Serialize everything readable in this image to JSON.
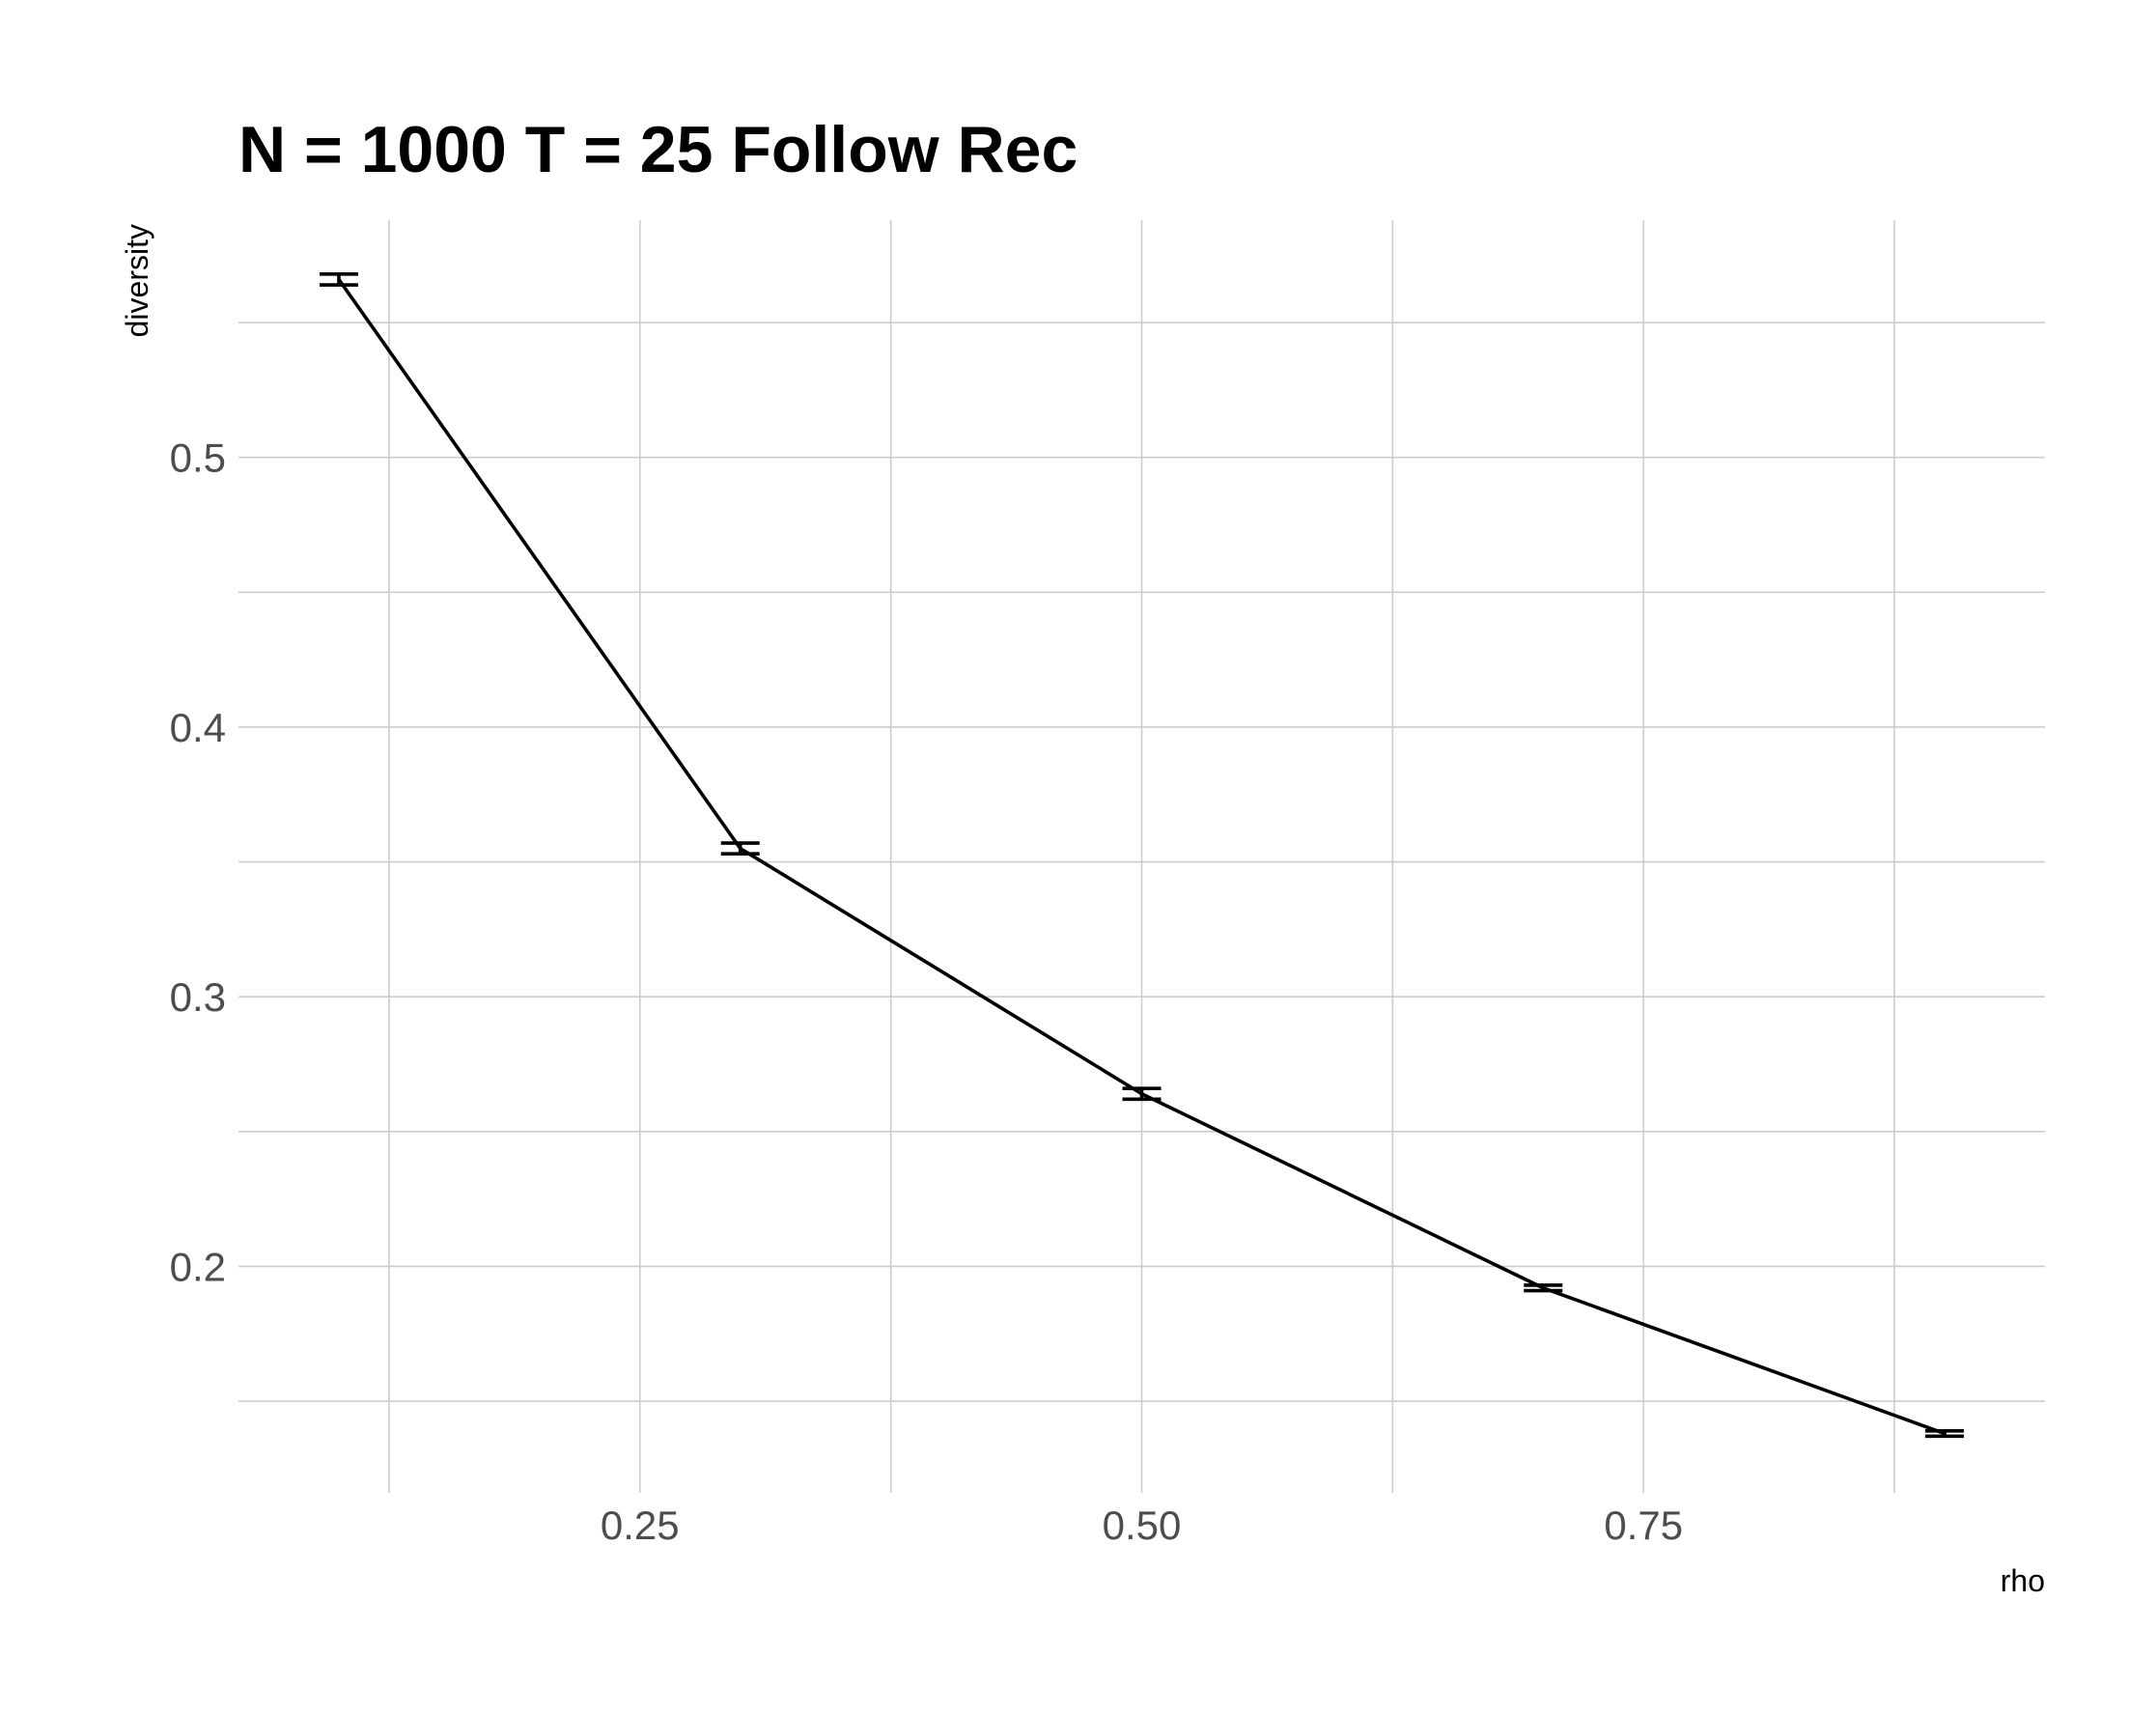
{
  "chart_data": {
    "type": "line",
    "title": "N = 1000 T = 25 Follow Rec",
    "xlabel": "rho",
    "ylabel": "diversity",
    "x": [
      0.1,
      0.3,
      0.5,
      0.7,
      0.9
    ],
    "series": [
      {
        "values": [
          0.566,
          0.355,
          0.264,
          0.192,
          0.138
        ],
        "error_low": [
          0.564,
          0.353,
          0.262,
          0.191,
          0.137
        ],
        "error_high": [
          0.568,
          0.357,
          0.266,
          0.193,
          0.139
        ]
      }
    ],
    "xlim": [
      0.05,
      0.95
    ],
    "ylim": [
      0.116,
      0.588
    ],
    "x_ticks": [
      0.25,
      0.5,
      0.75
    ],
    "x_tick_labels": [
      "0.25",
      "0.50",
      "0.75"
    ],
    "x_minor_ticks": [
      0.125,
      0.375,
      0.625,
      0.875
    ],
    "y_ticks": [
      0.2,
      0.3,
      0.4,
      0.5
    ],
    "y_tick_labels": [
      "0.2",
      "0.3",
      "0.4",
      "0.5"
    ],
    "y_minor_ticks": [
      0.15,
      0.25,
      0.35,
      0.45,
      0.55
    ],
    "grid": true,
    "legend": "none",
    "colors": {
      "line": "#000000",
      "grid": "#cccccc",
      "tick_text": "#4d4d4d"
    }
  }
}
